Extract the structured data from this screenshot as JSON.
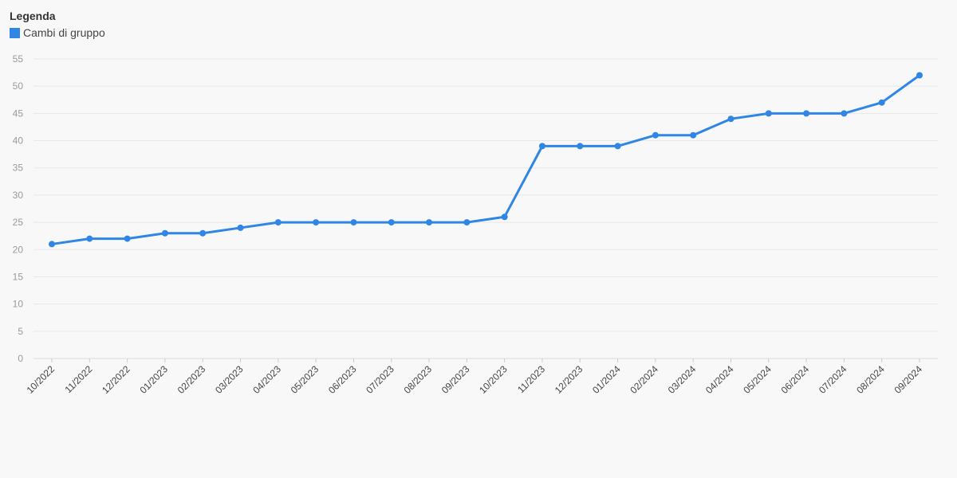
{
  "legend": {
    "title": "Legenda",
    "items": [
      {
        "label": "Cambi di gruppo",
        "color": "#2f86e4"
      }
    ]
  },
  "chart_data": {
    "type": "line",
    "title": "",
    "xlabel": "",
    "ylabel": "",
    "ylim": [
      0,
      55
    ],
    "yticks": [
      0,
      5,
      10,
      15,
      20,
      25,
      30,
      35,
      40,
      45,
      50,
      55
    ],
    "grid": true,
    "legend_position": "top-left",
    "categories": [
      "10/2022",
      "11/2022",
      "12/2022",
      "01/2023",
      "02/2023",
      "03/2023",
      "04/2023",
      "05/2023",
      "06/2023",
      "07/2023",
      "08/2023",
      "09/2023",
      "10/2023",
      "11/2023",
      "12/2023",
      "01/2024",
      "02/2024",
      "03/2024",
      "04/2024",
      "05/2024",
      "06/2024",
      "07/2024",
      "08/2024",
      "09/2024"
    ],
    "series": [
      {
        "name": "Cambi di gruppo",
        "color": "#2f86e4",
        "values": [
          21,
          22,
          22,
          23,
          23,
          24,
          25,
          25,
          25,
          25,
          25,
          25,
          26,
          39,
          39,
          39,
          41,
          41,
          44,
          45,
          45,
          45,
          47,
          52
        ]
      }
    ]
  }
}
